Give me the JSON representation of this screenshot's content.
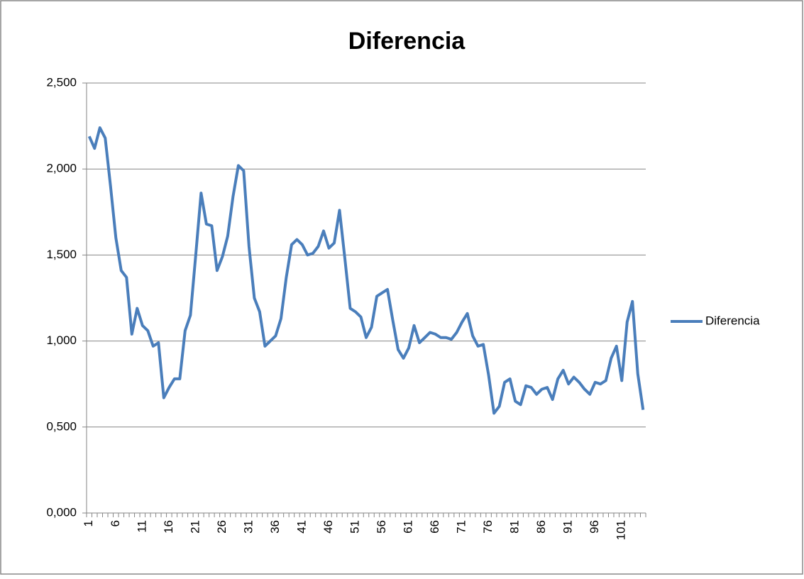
{
  "chart_data": {
    "type": "line",
    "title": "Diferencia",
    "categories": [
      "1",
      null,
      null,
      null,
      null,
      "6",
      null,
      null,
      null,
      null,
      "11",
      null,
      null,
      null,
      null,
      "16",
      null,
      null,
      null,
      null,
      "21",
      null,
      null,
      null,
      null,
      "26",
      null,
      null,
      null,
      null,
      "31",
      null,
      null,
      null,
      null,
      "36",
      null,
      null,
      null,
      null,
      "41",
      null,
      null,
      null,
      null,
      "46",
      null,
      null,
      null,
      null,
      "51",
      null,
      null,
      null,
      null,
      "56",
      null,
      null,
      null,
      null,
      "61",
      null,
      null,
      null,
      null,
      "66",
      null,
      null,
      null,
      null,
      "71",
      null,
      null,
      null,
      null,
      "76",
      null,
      null,
      null,
      null,
      "81",
      null,
      null,
      null,
      null,
      "86",
      null,
      null,
      null,
      null,
      "91",
      null,
      null,
      null,
      null,
      "96",
      null,
      null,
      null,
      null,
      "101",
      null,
      null,
      null,
      null
    ],
    "series": [
      {
        "name": "Diferencia",
        "color": "#4a7ebb",
        "values": [
          2.19,
          2.12,
          2.24,
          2.18,
          1.9,
          1.6,
          1.41,
          1.37,
          1.04,
          1.19,
          1.09,
          1.06,
          0.97,
          0.99,
          0.67,
          0.73,
          0.78,
          0.78,
          1.06,
          1.15,
          1.5,
          1.86,
          1.68,
          1.67,
          1.41,
          1.49,
          1.61,
          1.84,
          2.02,
          1.99,
          1.55,
          1.25,
          1.17,
          0.97,
          1.0,
          1.03,
          1.13,
          1.37,
          1.56,
          1.59,
          1.56,
          1.5,
          1.51,
          1.55,
          1.64,
          1.54,
          1.57,
          1.76,
          1.48,
          1.19,
          1.17,
          1.14,
          1.02,
          1.08,
          1.26,
          1.28,
          1.3,
          1.12,
          0.95,
          0.9,
          0.96,
          1.09,
          0.99,
          1.02,
          1.05,
          1.04,
          1.02,
          1.02,
          1.01,
          1.05,
          1.11,
          1.16,
          1.03,
          0.97,
          0.98,
          0.8,
          0.58,
          0.62,
          0.76,
          0.78,
          0.65,
          0.63,
          0.74,
          0.73,
          0.69,
          0.72,
          0.73,
          0.66,
          0.78,
          0.83,
          0.75,
          0.79,
          0.76,
          0.72,
          0.69,
          0.76,
          0.75,
          0.77,
          0.9,
          0.97,
          0.77,
          1.11,
          1.23,
          0.81,
          0.6
        ]
      }
    ],
    "ylim": [
      0,
      2.5
    ],
    "yticks": [
      {
        "value": 0,
        "label": "0,000"
      },
      {
        "value": 0.5,
        "label": "0,500"
      },
      {
        "value": 1,
        "label": "1,000"
      },
      {
        "value": 1.5,
        "label": "1,500"
      },
      {
        "value": 2,
        "label": "2,000"
      },
      {
        "value": 2.5,
        "label": "2,500"
      }
    ],
    "grid": true,
    "legend": "right"
  }
}
